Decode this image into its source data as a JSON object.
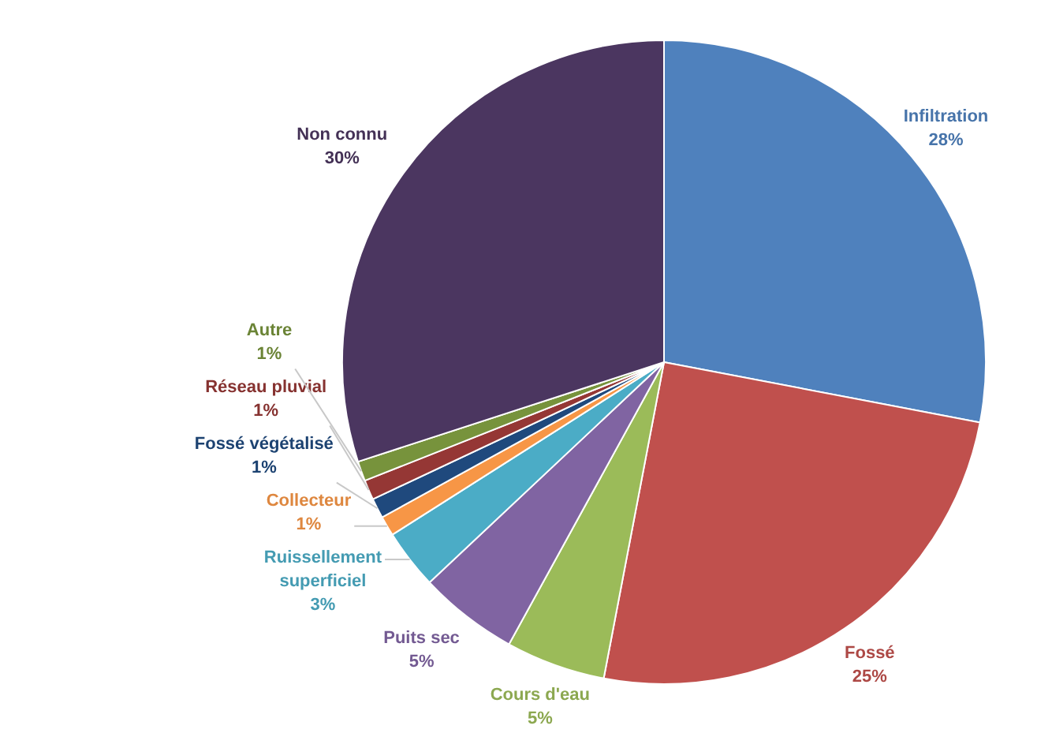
{
  "chart_data": {
    "type": "pie",
    "categories": [
      "Infiltration",
      "Fossé",
      "Cours d'eau",
      "Puits sec",
      "Ruissellement superficiel",
      "Collecteur",
      "Fossé végétalisé",
      "Réseau pluvial",
      "Autre",
      "Non connu"
    ],
    "values": [
      28,
      25,
      5,
      5,
      3,
      1,
      1,
      1,
      1,
      30
    ],
    "value_labels": [
      "28%",
      "25%",
      "5%",
      "5%",
      "3%",
      "1%",
      "1%",
      "1%",
      "1%",
      "30%"
    ],
    "colors": [
      "#4f81bd",
      "#c0504d",
      "#9bbb59",
      "#8064a2",
      "#4bacc6",
      "#f79646",
      "#1f497d",
      "#953735",
      "#77933c",
      "#4b3660"
    ],
    "legend": false
  }
}
